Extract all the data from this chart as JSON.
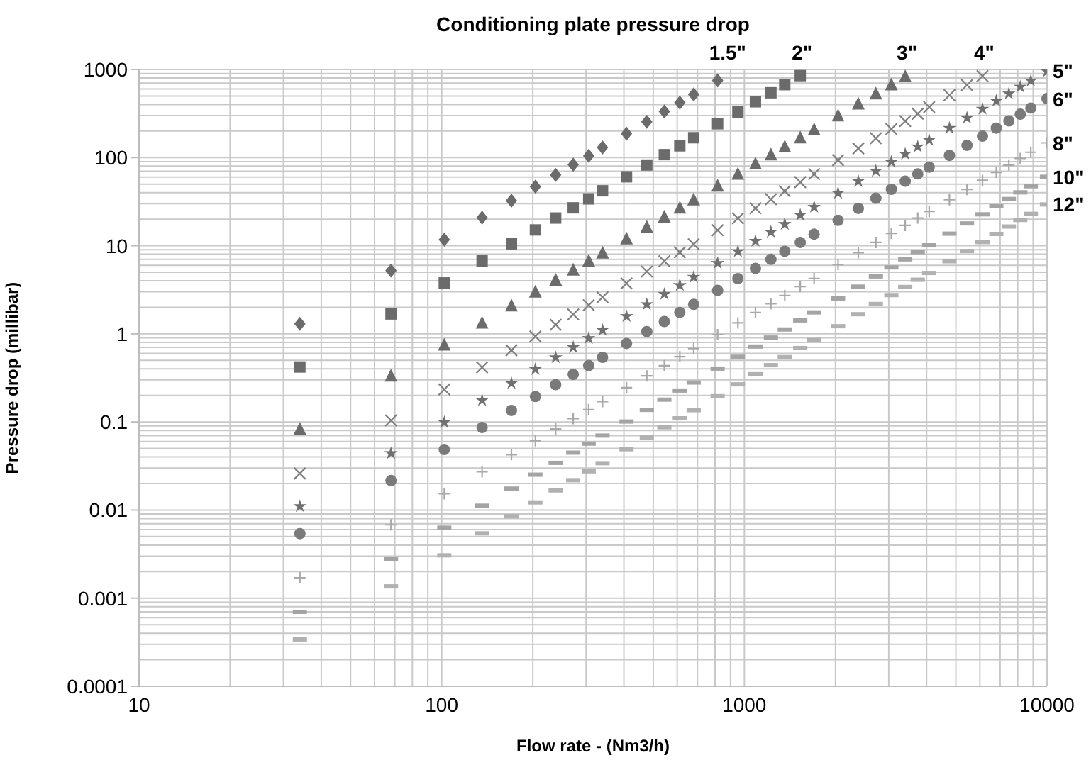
{
  "chart_data": {
    "type": "scatter",
    "title": "Conditioning plate pressure drop",
    "xlabel": "Flow rate - (Nm3/h)",
    "ylabel": "Pressure drop (millibar)",
    "log": "xy",
    "grid": true,
    "xlim": [
      10,
      10000
    ],
    "xticks": [
      10,
      100,
      1000,
      10000
    ],
    "ylim": [
      0.0001,
      1000
    ],
    "yticks": [
      0.0001,
      0.001,
      0.01,
      0.1,
      1,
      10,
      100,
      1000
    ],
    "x": [
      34,
      68,
      102,
      136,
      170,
      204,
      238,
      272,
      306,
      340,
      408,
      476,
      544,
      612,
      680,
      816,
      952,
      1088,
      1224,
      1360,
      1530,
      1700,
      2040,
      2380,
      2720,
      3060,
      3400,
      3740,
      4080,
      4760,
      5440,
      6120,
      6800,
      7480,
      8160,
      8840,
      9520,
      9996
    ],
    "series": [
      {
        "name": "1.5\"",
        "color": "#6b6b6b",
        "marker": "diamond",
        "values": [
          1.3,
          5.2,
          11.7,
          20.8,
          32.5,
          46.8,
          63.7,
          83.2,
          105,
          130,
          187,
          255,
          333,
          421,
          520,
          749,
          null,
          null,
          null,
          null,
          null,
          null,
          null,
          null,
          null,
          null,
          null,
          null,
          null,
          null,
          null,
          null,
          null,
          null,
          null,
          null,
          null,
          null
        ]
      },
      {
        "name": "2\"",
        "color": "#6b6b6b",
        "marker": "square",
        "values": [
          0.42,
          1.68,
          3.78,
          6.72,
          10.5,
          15.1,
          20.6,
          26.9,
          34,
          42,
          60.5,
          82.3,
          108,
          136,
          168,
          242,
          329,
          430,
          544,
          672,
          851,
          null,
          null,
          null,
          null,
          null,
          null,
          null,
          null,
          null,
          null,
          null,
          null,
          null,
          null,
          null,
          null,
          null
        ]
      },
      {
        "name": "3\"",
        "color": "#6b6b6b",
        "marker": "triangle",
        "values": [
          0.083,
          0.332,
          0.747,
          1.33,
          2.08,
          2.99,
          4.07,
          5.31,
          6.72,
          8.3,
          12,
          16.3,
          21.2,
          26.9,
          33.2,
          47.8,
          65.1,
          85,
          108,
          133,
          168,
          208,
          299,
          407,
          531,
          672,
          830,
          null,
          null,
          null,
          null,
          null,
          null,
          null,
          null,
          null,
          null,
          null
        ]
      },
      {
        "name": "4\"",
        "color": "#7f7f7f",
        "marker": "cross",
        "values": [
          0.026,
          0.104,
          0.234,
          0.416,
          0.65,
          0.936,
          1.27,
          1.66,
          2.11,
          2.6,
          3.74,
          5.1,
          6.66,
          8.42,
          10.4,
          15,
          20.4,
          26.6,
          33.7,
          41.6,
          52.7,
          65,
          93.6,
          127,
          166,
          211,
          260,
          315,
          374,
          510,
          666,
          842,
          null,
          null,
          null,
          null,
          null,
          null
        ]
      },
      {
        "name": "5\"",
        "color": "#707070",
        "marker": "star",
        "values": [
          0.011,
          0.044,
          0.099,
          0.176,
          0.275,
          0.396,
          0.539,
          0.704,
          0.891,
          1.1,
          1.58,
          2.16,
          2.82,
          3.56,
          4.4,
          6.34,
          8.62,
          11.3,
          14.3,
          17.6,
          22.3,
          27.5,
          39.6,
          53.9,
          70.4,
          89.1,
          110,
          133,
          158,
          216,
          282,
          356,
          440,
          532,
          634,
          744,
          null,
          951
        ]
      },
      {
        "name": "6\"",
        "color": "#7a7a7a",
        "marker": "circle",
        "values": [
          0.0054,
          0.0216,
          0.0486,
          0.0864,
          0.135,
          0.194,
          0.265,
          0.346,
          0.437,
          0.54,
          0.778,
          1.06,
          1.38,
          1.75,
          2.16,
          3.11,
          4.23,
          5.53,
          7,
          8.64,
          10.9,
          13.5,
          19.4,
          26.5,
          34.6,
          43.7,
          54,
          65.3,
          77.8,
          106,
          138,
          175,
          216,
          261,
          311,
          365,
          null,
          467
        ]
      },
      {
        "name": "8\"",
        "color": "#a9a9a9",
        "marker": "plus",
        "values": [
          0.0017,
          0.0068,
          0.0153,
          0.0272,
          0.0425,
          0.0612,
          0.0833,
          0.109,
          0.138,
          0.17,
          0.245,
          0.333,
          0.435,
          0.551,
          0.68,
          0.979,
          1.33,
          1.74,
          2.2,
          2.72,
          3.44,
          4.25,
          6.12,
          8.33,
          10.9,
          13.8,
          17,
          20.6,
          24.5,
          33.3,
          43.5,
          55.1,
          68,
          82.3,
          97.9,
          115,
          null,
          147
        ]
      },
      {
        "name": "10\"",
        "color": "#a4a4a4",
        "values": [
          0.0007,
          0.0028,
          0.0063,
          0.0112,
          0.0175,
          0.0252,
          0.0343,
          0.0448,
          0.0567,
          0.07,
          0.101,
          0.137,
          0.179,
          0.227,
          0.28,
          0.403,
          0.549,
          0.717,
          0.907,
          1.12,
          1.42,
          1.75,
          2.52,
          3.43,
          4.48,
          5.67,
          7,
          8.47,
          10.1,
          13.7,
          17.9,
          22.7,
          28,
          33.9,
          40.3,
          47.3,
          null,
          60.5
        ]
      },
      {
        "name": "12\"",
        "color": "#b1b1b1",
        "values": [
          0.00034,
          0.00136,
          0.00306,
          0.00544,
          0.0085,
          0.0122,
          0.0167,
          0.0218,
          0.0275,
          0.034,
          0.049,
          0.0666,
          0.087,
          0.11,
          0.136,
          0.196,
          0.267,
          0.348,
          0.441,
          0.544,
          0.689,
          0.85,
          1.22,
          1.67,
          2.18,
          2.75,
          3.4,
          4.11,
          4.9,
          6.66,
          8.7,
          11,
          13.6,
          16.5,
          19.6,
          23,
          null,
          29.4
        ]
      }
    ]
  }
}
